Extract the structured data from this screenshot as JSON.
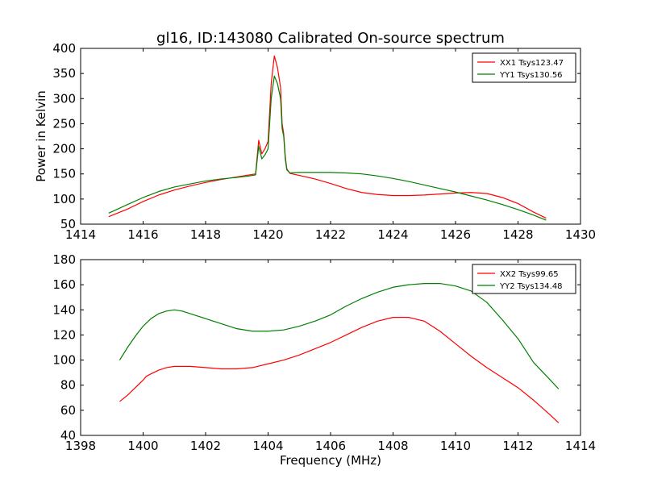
{
  "figure_title": "gl16, ID:143080 Calibrated On-source spectrum",
  "colors": {
    "xx": "#ff0000",
    "yy": "#008000"
  },
  "chart_data": [
    {
      "type": "line",
      "title": "gl16, ID:143080 Calibrated On-source spectrum",
      "xlabel": "",
      "ylabel": "Power in Kelvin",
      "xlim": [
        1414,
        1430
      ],
      "ylim": [
        50,
        400
      ],
      "xticks": [
        1414,
        1416,
        1418,
        1420,
        1422,
        1424,
        1426,
        1428,
        1430
      ],
      "yticks": [
        50,
        100,
        150,
        200,
        250,
        300,
        350,
        400
      ],
      "legend_position": "top-right",
      "series": [
        {
          "name": "XX1 Tsys123.47",
          "color": "#ff0000",
          "x": [
            1414.9,
            1415.5,
            1416.0,
            1416.5,
            1417.0,
            1417.5,
            1418.0,
            1418.5,
            1419.0,
            1419.4,
            1419.6,
            1419.7,
            1419.8,
            1419.9,
            1420.0,
            1420.1,
            1420.2,
            1420.3,
            1420.4,
            1420.45,
            1420.5,
            1420.55,
            1420.6,
            1420.7,
            1421.0,
            1421.5,
            1422.0,
            1422.5,
            1423.0,
            1423.5,
            1424.0,
            1424.5,
            1425.0,
            1425.5,
            1426.0,
            1426.5,
            1427.0,
            1427.5,
            1428.0,
            1428.5,
            1428.9
          ],
          "values": [
            65,
            80,
            95,
            108,
            118,
            126,
            133,
            139,
            144,
            148,
            150,
            217,
            190,
            200,
            215,
            330,
            385,
            362,
            322,
            250,
            230,
            185,
            160,
            151,
            147,
            140,
            131,
            121,
            113,
            109,
            107,
            107,
            108,
            110,
            112,
            113,
            111,
            103,
            91,
            74,
            62
          ]
        },
        {
          "name": "YY1 Tsys130.56",
          "color": "#008000",
          "x": [
            1414.9,
            1415.5,
            1416.0,
            1416.5,
            1417.0,
            1417.5,
            1418.0,
            1418.5,
            1419.0,
            1419.4,
            1419.6,
            1419.7,
            1419.8,
            1419.9,
            1420.0,
            1420.1,
            1420.2,
            1420.3,
            1420.4,
            1420.45,
            1420.5,
            1420.55,
            1420.6,
            1420.7,
            1421.0,
            1421.5,
            1422.0,
            1422.5,
            1423.0,
            1423.5,
            1424.0,
            1424.5,
            1425.0,
            1425.5,
            1426.0,
            1426.5,
            1427.0,
            1427.5,
            1428.0,
            1428.5,
            1428.9
          ],
          "values": [
            72,
            89,
            103,
            115,
            124,
            130,
            136,
            140,
            143,
            146,
            148,
            205,
            180,
            188,
            200,
            300,
            345,
            330,
            300,
            240,
            225,
            180,
            158,
            152,
            153,
            153,
            153,
            152,
            150,
            146,
            141,
            135,
            128,
            121,
            114,
            106,
            98,
            89,
            79,
            68,
            58
          ]
        }
      ]
    },
    {
      "type": "line",
      "title": "",
      "xlabel": "Frequency (MHz)",
      "ylabel": "",
      "xlim": [
        1398,
        1414
      ],
      "ylim": [
        40,
        180
      ],
      "xticks": [
        1398,
        1400,
        1402,
        1404,
        1406,
        1408,
        1410,
        1412,
        1414
      ],
      "yticks": [
        40,
        60,
        80,
        100,
        120,
        140,
        160,
        180
      ],
      "legend_position": "top-right",
      "series": [
        {
          "name": "XX2 Tsys99.65",
          "color": "#ff0000",
          "x": [
            1399.25,
            1399.5,
            1399.75,
            1400.0,
            1400.1,
            1400.25,
            1400.5,
            1400.75,
            1401.0,
            1401.5,
            1402.0,
            1402.5,
            1403.0,
            1403.5,
            1404.0,
            1404.5,
            1405.0,
            1405.5,
            1406.0,
            1406.5,
            1407.0,
            1407.5,
            1408.0,
            1408.5,
            1409.0,
            1409.5,
            1410.0,
            1410.5,
            1411.0,
            1411.5,
            1412.0,
            1412.5,
            1413.0,
            1413.3
          ],
          "values": [
            67,
            72,
            78,
            84,
            87,
            89,
            92,
            94,
            95,
            95,
            94,
            93,
            93,
            94,
            97,
            100,
            104,
            109,
            114,
            120,
            126,
            131,
            134,
            134,
            131,
            123,
            113,
            103,
            94,
            86,
            78,
            68,
            57,
            50
          ]
        },
        {
          "name": "YY2 Tsys134.48",
          "color": "#008000",
          "x": [
            1399.25,
            1399.5,
            1399.75,
            1400.0,
            1400.25,
            1400.5,
            1400.75,
            1401.0,
            1401.25,
            1401.5,
            1402.0,
            1402.5,
            1403.0,
            1403.5,
            1404.0,
            1404.5,
            1405.0,
            1405.5,
            1406.0,
            1406.5,
            1407.0,
            1407.5,
            1408.0,
            1408.5,
            1409.0,
            1409.5,
            1410.0,
            1410.5,
            1411.0,
            1411.5,
            1412.0,
            1412.5,
            1413.0,
            1413.3
          ],
          "values": [
            100,
            110,
            119,
            127,
            133,
            137,
            139,
            140,
            139,
            137,
            133,
            129,
            125,
            123,
            123,
            124,
            127,
            131,
            136,
            143,
            149,
            154,
            158,
            160,
            161,
            161,
            159,
            155,
            146,
            132,
            117,
            98,
            85,
            77
          ]
        }
      ]
    }
  ]
}
